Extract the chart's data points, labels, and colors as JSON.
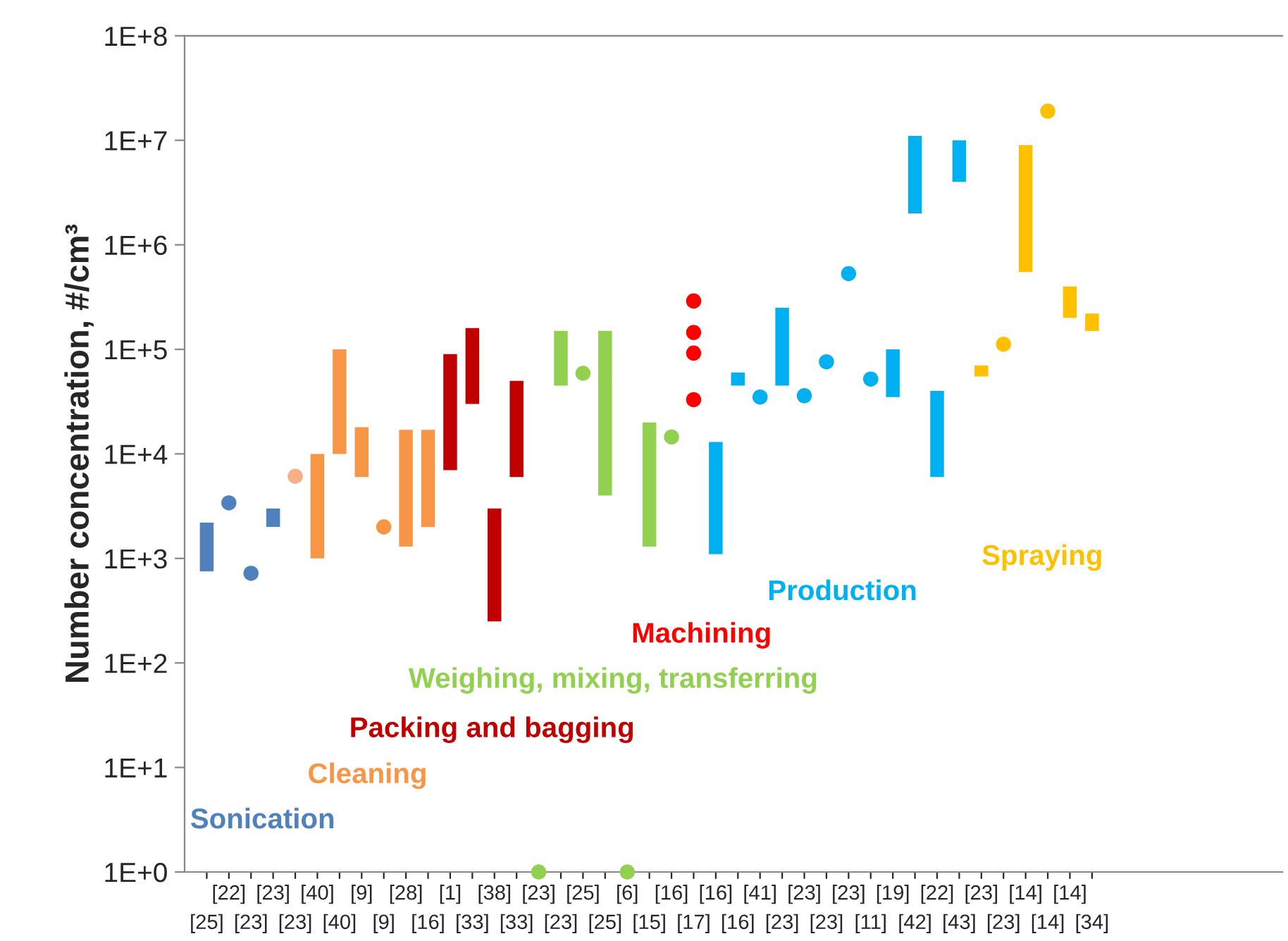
{
  "chart_data": {
    "type": "bar",
    "ylabel": "Number concentration, #/cm³",
    "categories": [
      "[25]",
      "[22]",
      "[23]",
      "[23]",
      "[23]",
      "[40]",
      "[40]",
      "[9]",
      "[9]",
      "[28]",
      "[16]",
      "[1]",
      "[33]",
      "[38]",
      "[33]",
      "[23]",
      "[23]",
      "[25]",
      "[25]",
      "[6]",
      "[15]",
      "[16]",
      "[17]",
      "[16]",
      "[16]",
      "[41]",
      "[23]",
      "[23]",
      "[23]",
      "[23]",
      "[11]",
      "[19]",
      "[42]",
      "[22]",
      "[43]",
      "[23]",
      "[23]",
      "[14]",
      "[14]",
      "[14]",
      "[34]"
    ],
    "log": "y",
    "ylim": [
      1,
      100000000
    ],
    "yticks": [
      {
        "value": 1,
        "label": "1E+0"
      },
      {
        "value": 10,
        "label": "1E+1"
      },
      {
        "value": 100,
        "label": "1E+2"
      },
      {
        "value": 1000,
        "label": "1E+3"
      },
      {
        "value": 10000,
        "label": "1E+4"
      },
      {
        "value": 100000,
        "label": "1E+5"
      },
      {
        "value": 1000000,
        "label": "1E+6"
      },
      {
        "value": 10000000,
        "label": "1E+7"
      },
      {
        "value": 100000000,
        "label": "1E+8"
      }
    ],
    "grid": false,
    "legend": false,
    "series": [
      {
        "name": "Sonication",
        "color": "#4f81bd",
        "values": [
          1450,
          null,
          null,
          1000,
          null,
          null,
          null,
          null,
          null,
          null,
          null,
          null,
          null,
          null,
          null,
          null,
          null,
          null,
          null,
          null,
          null,
          null,
          null,
          null,
          null,
          null,
          null,
          null,
          null,
          null,
          null,
          null,
          null,
          null,
          null,
          null,
          null,
          null,
          null,
          null,
          null
        ],
        "base": [
          750,
          null,
          null,
          2000,
          null,
          null,
          null,
          null,
          null,
          null,
          null,
          null,
          null,
          null,
          null,
          null,
          null,
          null,
          null,
          null,
          null,
          null,
          null,
          null,
          null,
          null,
          null,
          null,
          null,
          null,
          null,
          null,
          null,
          null,
          null,
          null,
          null,
          null,
          null,
          null,
          null
        ]
      },
      {
        "type": "scatter",
        "color": "#4f81bd",
        "values": [
          null,
          3400,
          720,
          null,
          null,
          null,
          null,
          null,
          null,
          null,
          null,
          null,
          null,
          null,
          null,
          null,
          null,
          null,
          null,
          null,
          null,
          null,
          null,
          null,
          null,
          null,
          null,
          null,
          null,
          null,
          null,
          null,
          null,
          null,
          null,
          null,
          null,
          null,
          null,
          null,
          null
        ]
      },
      {
        "type": "scatter",
        "color": "#f4b183",
        "values": [
          null,
          null,
          null,
          null,
          6100,
          null,
          null,
          null,
          null,
          null,
          null,
          null,
          null,
          null,
          null,
          null,
          null,
          null,
          null,
          null,
          null,
          null,
          null,
          null,
          null,
          null,
          null,
          null,
          null,
          null,
          null,
          null,
          null,
          null,
          null,
          null,
          null,
          null,
          null,
          null,
          null
        ]
      },
      {
        "name": "Cleaning",
        "color": "#f79646",
        "values": [
          null,
          null,
          null,
          null,
          null,
          9000,
          90000,
          12000,
          null,
          15700,
          15000,
          null,
          null,
          null,
          null,
          null,
          null,
          null,
          null,
          null,
          null,
          null,
          null,
          null,
          null,
          null,
          null,
          null,
          null,
          null,
          null,
          null,
          null,
          null,
          null,
          null,
          null,
          null,
          null,
          null,
          null
        ],
        "base": [
          null,
          null,
          null,
          null,
          null,
          1000,
          10000,
          6000,
          null,
          1300,
          2000,
          null,
          null,
          null,
          null,
          null,
          null,
          null,
          null,
          null,
          null,
          null,
          null,
          null,
          null,
          null,
          null,
          null,
          null,
          null,
          null,
          null,
          null,
          null,
          null,
          null,
          null,
          null,
          null,
          null,
          null
        ]
      },
      {
        "type": "scatter",
        "color": "#f79646",
        "values": [
          null,
          null,
          null,
          null,
          null,
          null,
          null,
          null,
          2000,
          null,
          null,
          null,
          null,
          null,
          null,
          null,
          null,
          null,
          null,
          null,
          null,
          null,
          null,
          null,
          null,
          null,
          null,
          null,
          null,
          null,
          null,
          null,
          null,
          null,
          null,
          null,
          null,
          null,
          null,
          null,
          null
        ]
      },
      {
        "name": "Packing and bagging",
        "color": "#c00000",
        "values": [
          null,
          null,
          null,
          null,
          null,
          null,
          null,
          null,
          null,
          null,
          null,
          83000,
          130000,
          2750,
          44000,
          null,
          null,
          null,
          null,
          null,
          null,
          null,
          null,
          null,
          null,
          null,
          null,
          null,
          null,
          null,
          null,
          null,
          null,
          null,
          null,
          null,
          null,
          null,
          null,
          null,
          null
        ],
        "base": [
          null,
          null,
          null,
          null,
          null,
          null,
          null,
          null,
          null,
          null,
          null,
          7000,
          30000,
          250,
          6000,
          null,
          null,
          null,
          null,
          null,
          null,
          null,
          null,
          null,
          null,
          null,
          null,
          null,
          null,
          null,
          null,
          null,
          null,
          null,
          null,
          null,
          null,
          null,
          null,
          null,
          null
        ]
      },
      {
        "name": "Weighing, mixing, transferring",
        "color": "#92d050",
        "values": [
          null,
          null,
          null,
          null,
          null,
          null,
          null,
          null,
          null,
          null,
          null,
          null,
          null,
          null,
          null,
          null,
          105000,
          null,
          146000,
          null,
          18700,
          null,
          null,
          null,
          null,
          null,
          null,
          null,
          null,
          null,
          null,
          null,
          null,
          null,
          null,
          null,
          null,
          null,
          null,
          null,
          null
        ],
        "base": [
          null,
          null,
          null,
          null,
          null,
          null,
          null,
          null,
          null,
          null,
          null,
          null,
          null,
          null,
          null,
          null,
          45000,
          null,
          4000,
          null,
          1300,
          null,
          null,
          null,
          null,
          null,
          null,
          null,
          null,
          null,
          null,
          null,
          null,
          null,
          null,
          null,
          null,
          null,
          null,
          null,
          null
        ]
      },
      {
        "type": "scatter",
        "color": "#92d050",
        "values": [
          null,
          null,
          null,
          null,
          null,
          null,
          null,
          null,
          null,
          null,
          null,
          null,
          null,
          null,
          null,
          1,
          null,
          59000,
          null,
          1,
          null,
          14500,
          null,
          null,
          null,
          null,
          null,
          null,
          null,
          null,
          null,
          null,
          null,
          null,
          null,
          null,
          null,
          null,
          null,
          null,
          null
        ]
      },
      {
        "type": "scatter",
        "name": "Machining",
        "color": "#ff0000",
        "values": [
          null,
          null,
          null,
          null,
          null,
          null,
          null,
          null,
          null,
          null,
          null,
          null,
          null,
          null,
          null,
          null,
          null,
          null,
          null,
          null,
          null,
          null,
          290000,
          null,
          null,
          null,
          null,
          null,
          null,
          null,
          null,
          null,
          null,
          null,
          null,
          null,
          null,
          null,
          null,
          null,
          null
        ]
      },
      {
        "type": "scatter",
        "color": "#ff0000",
        "values": [
          null,
          null,
          null,
          null,
          null,
          null,
          null,
          null,
          null,
          null,
          null,
          null,
          null,
          null,
          null,
          null,
          null,
          null,
          null,
          null,
          null,
          null,
          145000,
          null,
          null,
          null,
          null,
          null,
          null,
          null,
          null,
          null,
          null,
          null,
          null,
          null,
          null,
          null,
          null,
          null,
          null
        ]
      },
      {
        "type": "scatter",
        "color": "#ff0000",
        "values": [
          null,
          null,
          null,
          null,
          null,
          null,
          null,
          null,
          null,
          null,
          null,
          null,
          null,
          null,
          null,
          null,
          null,
          null,
          null,
          null,
          null,
          null,
          92000,
          null,
          null,
          null,
          null,
          null,
          null,
          null,
          null,
          null,
          null,
          null,
          null,
          null,
          null,
          null,
          null,
          null,
          null
        ]
      },
      {
        "type": "scatter",
        "color": "#ff0000",
        "values": [
          null,
          null,
          null,
          null,
          null,
          null,
          null,
          null,
          null,
          null,
          null,
          null,
          null,
          null,
          null,
          null,
          null,
          null,
          null,
          null,
          null,
          null,
          33000,
          null,
          null,
          null,
          null,
          null,
          null,
          null,
          null,
          null,
          null,
          null,
          null,
          null,
          null,
          null,
          null,
          null,
          null
        ]
      },
      {
        "name": "Production",
        "color": "#00b0f0",
        "values": [
          null,
          null,
          null,
          null,
          null,
          null,
          null,
          null,
          null,
          null,
          null,
          null,
          null,
          null,
          null,
          null,
          null,
          null,
          null,
          null,
          null,
          null,
          null,
          11900,
          15000,
          null,
          205000,
          null,
          null,
          null,
          null,
          65000,
          9000000,
          34000,
          6000000,
          null,
          null,
          null,
          null,
          null,
          null
        ],
        "base": [
          null,
          null,
          null,
          null,
          null,
          null,
          null,
          null,
          null,
          null,
          null,
          null,
          null,
          null,
          null,
          null,
          null,
          null,
          null,
          null,
          null,
          null,
          null,
          1100,
          45000,
          null,
          45000,
          null,
          null,
          null,
          null,
          35000,
          2000000,
          6000,
          4000000,
          null,
          null,
          null,
          null,
          null,
          null
        ]
      },
      {
        "type": "scatter",
        "color": "#00b0f0",
        "values": [
          null,
          null,
          null,
          null,
          null,
          null,
          null,
          null,
          null,
          null,
          null,
          null,
          null,
          null,
          null,
          null,
          null,
          null,
          null,
          null,
          null,
          null,
          null,
          null,
          null,
          35000,
          null,
          36000,
          76000,
          530000,
          52000,
          null,
          null,
          null,
          null,
          null,
          null,
          null,
          null,
          null,
          null
        ]
      },
      {
        "name": "Spraying",
        "color": "#ffc000",
        "values": [
          null,
          null,
          null,
          null,
          null,
          null,
          null,
          null,
          null,
          null,
          null,
          null,
          null,
          null,
          null,
          null,
          null,
          null,
          null,
          null,
          null,
          null,
          null,
          null,
          null,
          null,
          null,
          null,
          null,
          null,
          null,
          null,
          null,
          null,
          null,
          15000,
          null,
          8450000,
          null,
          200000,
          70000
        ],
        "base": [
          null,
          null,
          null,
          null,
          null,
          null,
          null,
          null,
          null,
          null,
          null,
          null,
          null,
          null,
          null,
          null,
          null,
          null,
          null,
          null,
          null,
          null,
          null,
          null,
          null,
          null,
          null,
          null,
          null,
          null,
          null,
          null,
          null,
          null,
          null,
          55000,
          null,
          550000,
          null,
          200000,
          150000
        ]
      },
      {
        "type": "scatter",
        "color": "#ffc000",
        "values": [
          null,
          null,
          null,
          null,
          null,
          null,
          null,
          null,
          null,
          null,
          null,
          null,
          null,
          null,
          null,
          null,
          null,
          null,
          null,
          null,
          null,
          null,
          null,
          null,
          null,
          null,
          null,
          null,
          null,
          null,
          null,
          null,
          null,
          null,
          null,
          null,
          112000,
          null,
          19000000,
          null,
          null
        ]
      }
    ]
  }
}
